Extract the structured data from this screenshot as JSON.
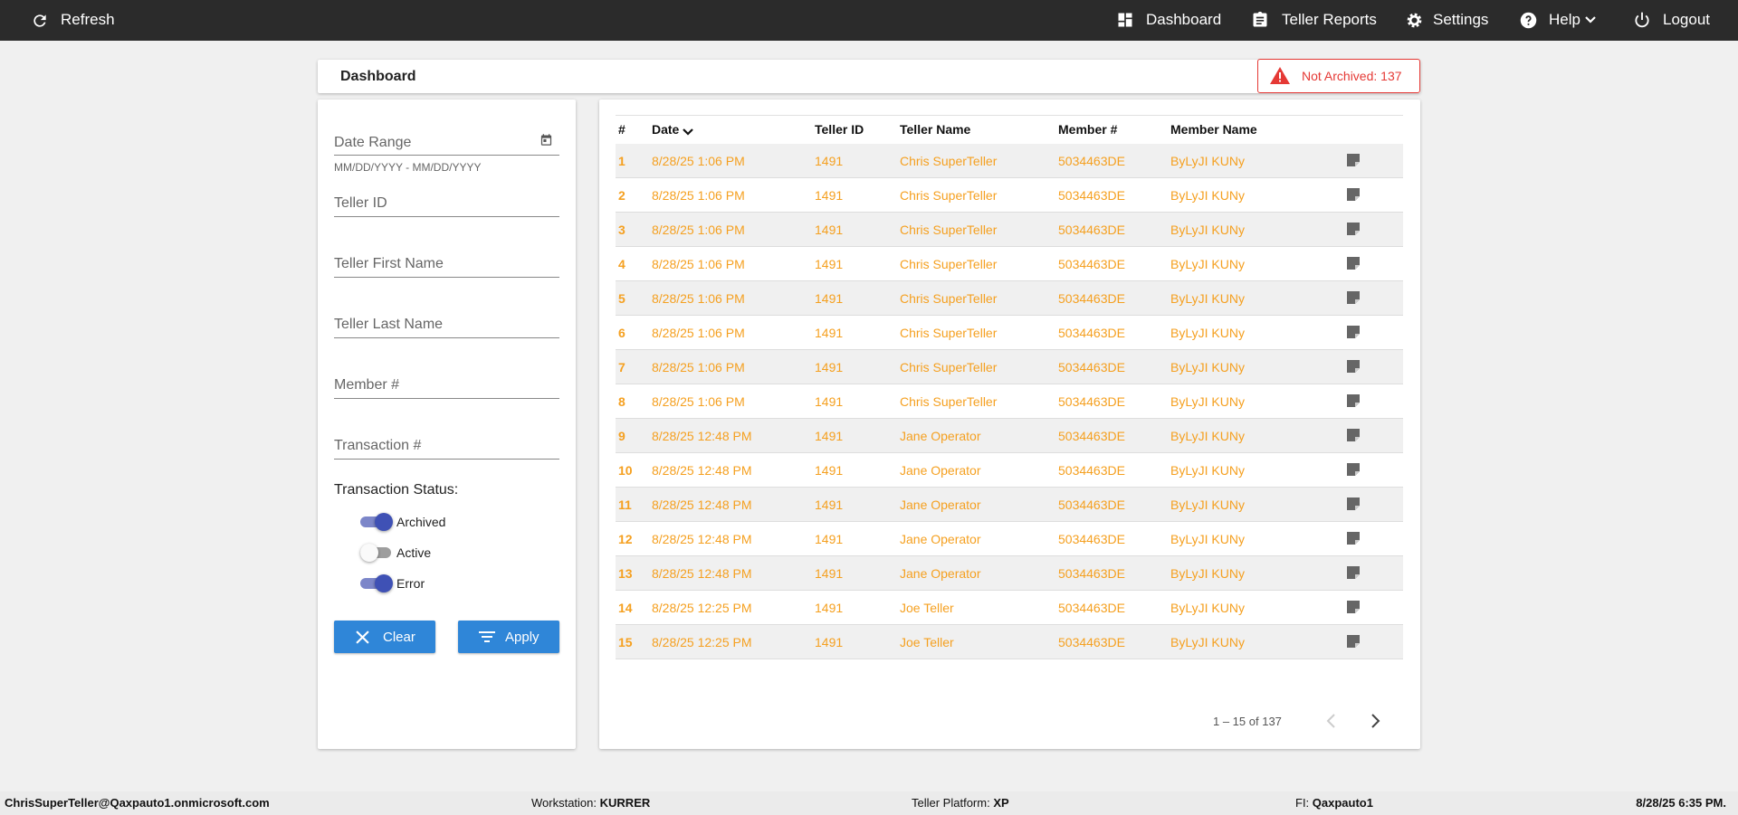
{
  "nav": {
    "refresh": "Refresh",
    "items": [
      "Dashboard",
      "Teller Reports",
      "Settings",
      "Help",
      "Logout"
    ]
  },
  "header": {
    "title": "Dashboard",
    "alert": "Not Archived: 137"
  },
  "filters": {
    "date_range": "Date Range",
    "date_hint": "MM/DD/YYYY - MM/DD/YYYY",
    "fields": [
      "Teller ID",
      "Teller First Name",
      "Teller Last Name",
      "Member #",
      "Transaction #"
    ],
    "status_label": "Transaction Status:",
    "statuses": [
      {
        "label": "Archived",
        "checked": true
      },
      {
        "label": "Active",
        "checked": false
      },
      {
        "label": "Error",
        "checked": true
      }
    ],
    "clear": "Clear",
    "apply": "Apply"
  },
  "table": {
    "columns": [
      "#",
      "Date",
      "Teller ID",
      "Teller Name",
      "Member #",
      "Member Name"
    ],
    "rows": [
      [
        1,
        "8/28/25 1:06 PM",
        "1491",
        "Chris SuperTeller",
        "5034463DE",
        "ByLyJI KUNy"
      ],
      [
        2,
        "8/28/25 1:06 PM",
        "1491",
        "Chris SuperTeller",
        "5034463DE",
        "ByLyJI KUNy"
      ],
      [
        3,
        "8/28/25 1:06 PM",
        "1491",
        "Chris SuperTeller",
        "5034463DE",
        "ByLyJI KUNy"
      ],
      [
        4,
        "8/28/25 1:06 PM",
        "1491",
        "Chris SuperTeller",
        "5034463DE",
        "ByLyJI KUNy"
      ],
      [
        5,
        "8/28/25 1:06 PM",
        "1491",
        "Chris SuperTeller",
        "5034463DE",
        "ByLyJI KUNy"
      ],
      [
        6,
        "8/28/25 1:06 PM",
        "1491",
        "Chris SuperTeller",
        "5034463DE",
        "ByLyJI KUNy"
      ],
      [
        7,
        "8/28/25 1:06 PM",
        "1491",
        "Chris SuperTeller",
        "5034463DE",
        "ByLyJI KUNy"
      ],
      [
        8,
        "8/28/25 1:06 PM",
        "1491",
        "Chris SuperTeller",
        "5034463DE",
        "ByLyJI KUNy"
      ],
      [
        9,
        "8/28/25 12:48 PM",
        "1491",
        "Jane Operator",
        "5034463DE",
        "ByLyJI KUNy"
      ],
      [
        10,
        "8/28/25 12:48 PM",
        "1491",
        "Jane Operator",
        "5034463DE",
        "ByLyJI KUNy"
      ],
      [
        11,
        "8/28/25 12:48 PM",
        "1491",
        "Jane Operator",
        "5034463DE",
        "ByLyJI KUNy"
      ],
      [
        12,
        "8/28/25 12:48 PM",
        "1491",
        "Jane Operator",
        "5034463DE",
        "ByLyJI KUNy"
      ],
      [
        13,
        "8/28/25 12:48 PM",
        "1491",
        "Jane Operator",
        "5034463DE",
        "ByLyJI KUNy"
      ],
      [
        14,
        "8/28/25 12:25 PM",
        "1491",
        "Joe Teller",
        "5034463DE",
        "ByLyJI KUNy"
      ],
      [
        15,
        "8/28/25 12:25 PM",
        "1491",
        "Joe Teller",
        "5034463DE",
        "ByLyJI KUNy"
      ]
    ]
  },
  "pagination": "1 – 15 of 137",
  "footer": [
    {
      "value": "ChrisSuperTeller@Qaxpauto1.onmicrosoft.com"
    },
    {
      "label": "Workstation:",
      "value": "KURRER"
    },
    {
      "label": "Teller Platform:",
      "value": "XP"
    },
    {
      "label": "FI:",
      "value": "Qaxpauto1"
    },
    {
      "value": "8/28/25 6:35 PM."
    }
  ]
}
